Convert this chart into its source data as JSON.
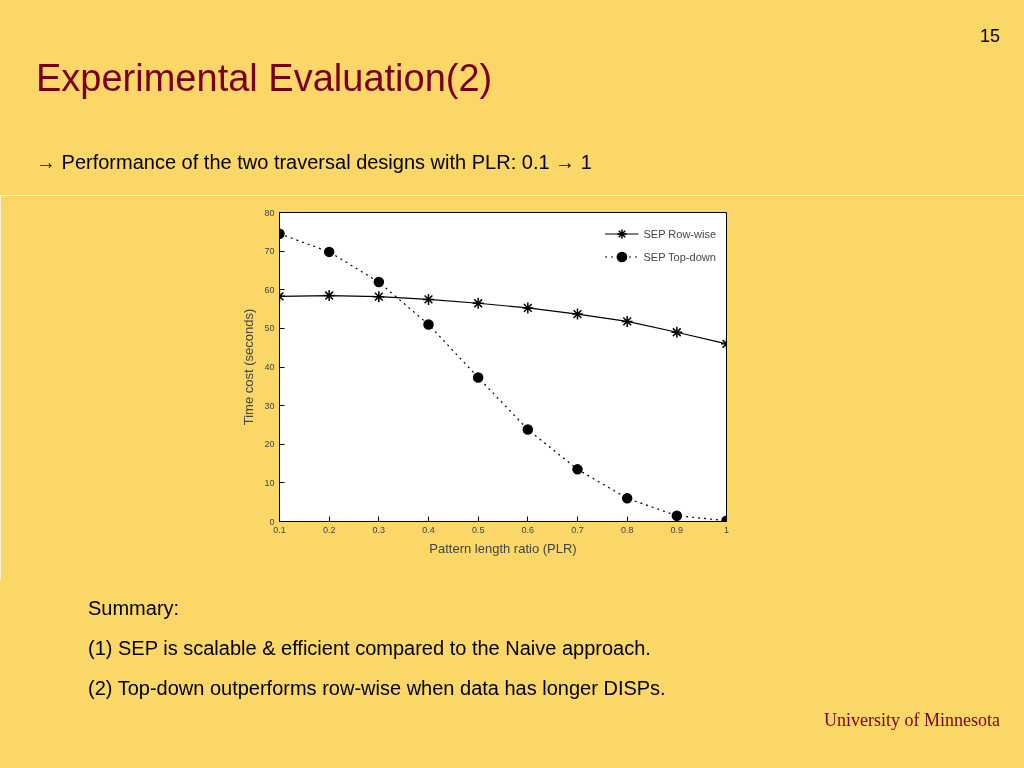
{
  "chart_data": {
    "type": "line",
    "title": "Experimental Evaluation(2)",
    "subtitle": "→ Performance of the two traversal designs with PLR: 0.1 → 1",
    "annotations": [
      "15",
      "Summary:",
      "(1) SEP is scalable & efficient compared to the Naive approach.",
      "(2) Top-down outperforms row-wise when data has longer DISPs.",
      "University of Minnesota"
    ],
    "xlabel": "Pattern length ratio (PLR)",
    "ylabel": "Time cost (seconds)",
    "x": [
      0.1,
      0.2,
      0.3,
      0.4,
      0.5,
      0.6,
      0.7,
      0.8,
      0.9,
      1
    ],
    "series": [
      {
        "name": "SEP Row-wise",
        "color": "#000000",
        "marker": "cross",
        "line_style": "solid",
        "values": [
          58.3,
          58.5,
          58.2,
          57.5,
          56.5,
          55.3,
          53.7,
          51.8,
          49,
          46
        ]
      },
      {
        "name": "SEP Top-down",
        "color": "#000000",
        "marker": "circle",
        "line_style": "dotted",
        "values": [
          74.5,
          69.8,
          62,
          51,
          37.3,
          23.8,
          13.5,
          6,
          1.5,
          0.2
        ]
      }
    ],
    "xlim": [
      0.1,
      1
    ],
    "ylim": [
      0,
      80
    ],
    "xticks": [
      0.1,
      0.2,
      0.3,
      0.4,
      0.5,
      0.6,
      0.7,
      0.8,
      0.9,
      1
    ],
    "yticks": [
      0,
      10,
      20,
      30,
      40,
      50,
      60,
      70,
      80
    ],
    "grid": false,
    "legend": "top right"
  }
}
